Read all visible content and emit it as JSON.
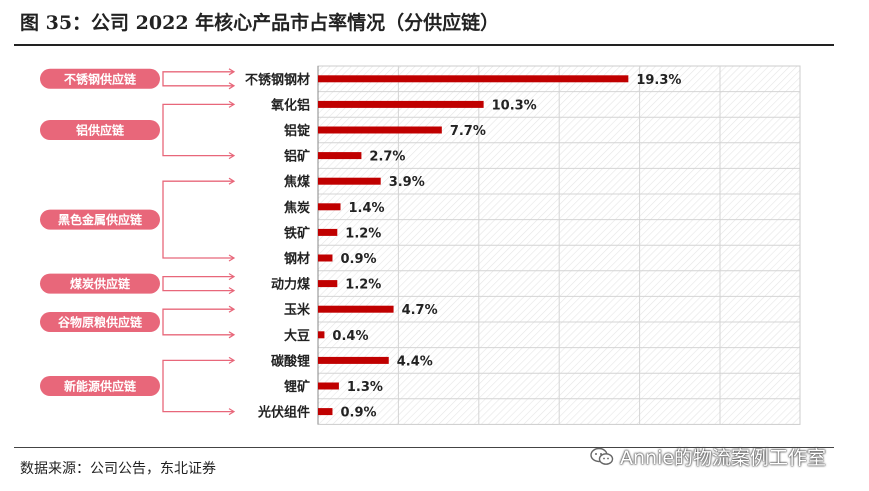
{
  "header": {
    "title": "图 35：公司 2022 年核心产品市占率情况（分供应链）"
  },
  "footer": {
    "source": "数据来源：公司公告，东北证券",
    "watermark": "Annie的物流案例工作室"
  },
  "colors": {
    "bar": "#c00000",
    "pill": "#e8677a",
    "bracket": "#e8677a",
    "grid": "#d4d4d4"
  },
  "chart_data": {
    "type": "bar",
    "orientation": "horizontal",
    "title": "",
    "xlabel": "",
    "ylabel": "",
    "xlim": [
      0,
      0.25
    ],
    "grid": true,
    "value_format": "percent",
    "categories": [
      "不锈钢钢材",
      "氧化铝",
      "铝锭",
      "铝矿",
      "焦煤",
      "焦炭",
      "铁矿",
      "钢材",
      "动力煤",
      "玉米",
      "大豆",
      "碳酸锂",
      "锂矿",
      "光伏组件"
    ],
    "values": [
      0.193,
      0.103,
      0.077,
      0.027,
      0.039,
      0.014,
      0.012,
      0.009,
      0.012,
      0.047,
      0.004,
      0.044,
      0.013,
      0.009
    ],
    "labels": [
      "19.3%",
      "10.3%",
      "7.7%",
      "2.7%",
      "3.9%",
      "1.4%",
      "1.2%",
      "0.9%",
      "1.2%",
      "4.7%",
      "0.4%",
      "4.4%",
      "1.3%",
      "0.9%"
    ],
    "groups": [
      {
        "name": "不锈钢供应链",
        "from": 0,
        "to": 0
      },
      {
        "name": "铝供应链",
        "from": 1,
        "to": 3
      },
      {
        "name": "黑色金属供应链",
        "from": 4,
        "to": 7
      },
      {
        "name": "煤炭供应链",
        "from": 8,
        "to": 8
      },
      {
        "name": "谷物原粮供应链",
        "from": 9,
        "to": 10
      },
      {
        "name": "新能源供应链",
        "from": 11,
        "to": 13
      }
    ]
  }
}
